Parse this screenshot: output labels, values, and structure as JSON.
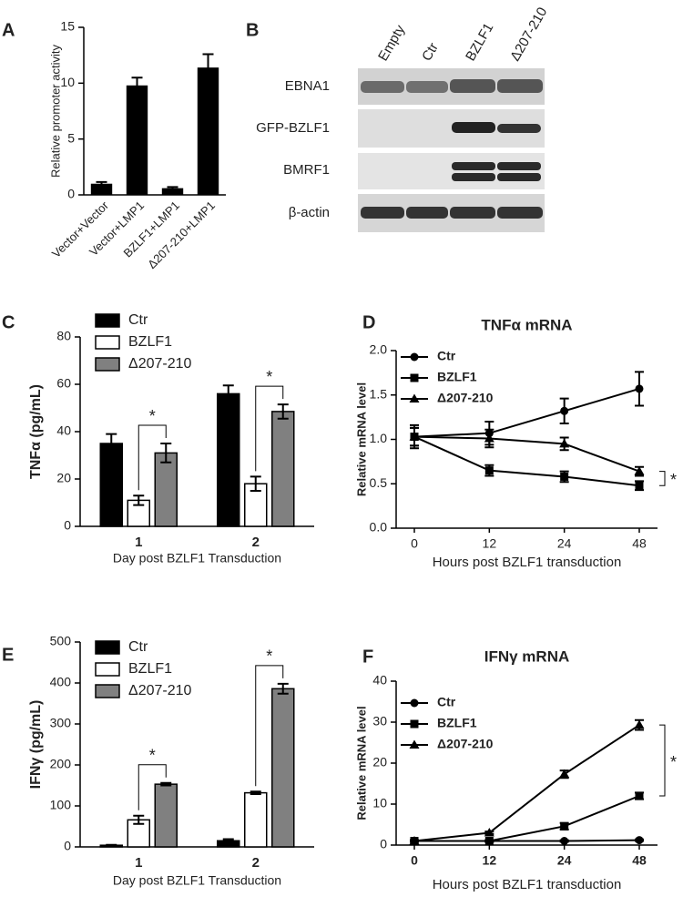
{
  "chart_data": [
    {
      "panel": "A",
      "type": "bar",
      "ylabel": "Relative promoter activity",
      "categories": [
        "Vector+Vector",
        "Vector+LMP1",
        "BZLF1+LMP1",
        "Δ207-210+LMP1"
      ],
      "values": [
        1.0,
        9.8,
        0.6,
        11.4
      ],
      "errors": [
        0.15,
        0.7,
        0.1,
        1.2
      ],
      "color": "#000000",
      "ylim": [
        0,
        15
      ],
      "yticks": [
        0,
        5,
        10,
        15
      ]
    },
    {
      "panel": "C",
      "type": "grouped_bar",
      "ylabel": "TNFα (pg/mL)",
      "xlabel": "Day post BZLF1 Transduction",
      "categories": [
        "1",
        "2"
      ],
      "series": [
        {
          "name": "Ctr",
          "color": "#000000",
          "values": [
            35,
            56
          ],
          "errors": [
            4,
            3.5
          ]
        },
        {
          "name": "BZLF1",
          "color": "#ffffff",
          "values": [
            11,
            18
          ],
          "errors": [
            2,
            3
          ]
        },
        {
          "name": "Δ207-210",
          "color": "#808080",
          "values": [
            31,
            48.5
          ],
          "errors": [
            4,
            3
          ]
        }
      ],
      "ylim": [
        0,
        80
      ],
      "yticks": [
        0,
        20,
        40,
        60,
        80
      ],
      "annotations": [
        "*",
        "*"
      ]
    },
    {
      "panel": "D",
      "type": "line",
      "title": "TNFα mRNA",
      "ylabel": "Relative mRNA level",
      "xlabel": "Hours post BZLF1 transduction",
      "categories": [
        "0",
        "12",
        "24",
        "48"
      ],
      "series": [
        {
          "name": "Ctr",
          "color": "#000000",
          "marker": "circle",
          "values": [
            1.03,
            1.07,
            1.32,
            1.57
          ],
          "errors": [
            0.13,
            0.13,
            0.14,
            0.19
          ]
        },
        {
          "name": "BZLF1",
          "color": "#000000",
          "marker": "square",
          "values": [
            1.03,
            0.65,
            0.58,
            0.48
          ],
          "errors": [
            0.1,
            0.06,
            0.06,
            0.05
          ]
        },
        {
          "name": "Δ207-210",
          "color": "#000000",
          "marker": "triangle",
          "values": [
            1.03,
            1.01,
            0.95,
            0.64
          ],
          "errors": [
            0.1,
            0.1,
            0.07,
            0.05
          ]
        }
      ],
      "ylim": [
        0,
        2
      ],
      "yticks": [
        {
          "value": 0,
          "label": "0.0"
        },
        0.5,
        {
          "value": 1,
          "label": "1.0"
        },
        1.5,
        {
          "value": 2,
          "label": "2.0"
        }
      ],
      "annotations": [
        "*"
      ]
    },
    {
      "panel": "E",
      "type": "grouped_bar",
      "ylabel": "IFNγ (pg/mL)",
      "xlabel": "Day post BZLF1 Transduction",
      "categories": [
        "1",
        "2"
      ],
      "series": [
        {
          "name": "Ctr",
          "color": "#000000",
          "values": [
            4,
            15
          ],
          "errors": [
            1,
            4
          ]
        },
        {
          "name": "BZLF1",
          "color": "#ffffff",
          "values": [
            66,
            132
          ],
          "errors": [
            10,
            3
          ]
        },
        {
          "name": "Δ207-210",
          "color": "#808080",
          "values": [
            153,
            386
          ],
          "errors": [
            3,
            12
          ]
        }
      ],
      "ylim": [
        0,
        500
      ],
      "yticks": [
        0,
        100,
        200,
        300,
        400,
        500
      ],
      "annotations": [
        "*",
        "*"
      ]
    },
    {
      "panel": "F",
      "type": "line",
      "title": "IFNγ mRNA",
      "ylabel": "Relative mRNA level",
      "xlabel": "Hours post BZLF1 transduction",
      "categories": [
        "0",
        "12",
        "24",
        "48"
      ],
      "series": [
        {
          "name": "Ctr",
          "color": "#000000",
          "marker": "circle",
          "values": [
            1,
            1,
            1,
            1.2
          ],
          "errors": [
            0.2,
            0.2,
            0.2,
            0.2
          ]
        },
        {
          "name": "BZLF1",
          "color": "#000000",
          "marker": "square",
          "values": [
            1,
            1,
            4.6,
            12
          ],
          "errors": [
            0.2,
            0.2,
            0.8,
            0.8
          ]
        },
        {
          "name": "Δ207-210",
          "color": "#000000",
          "marker": "triangle",
          "values": [
            1,
            3,
            17.3,
            29.3
          ],
          "errors": [
            0.2,
            0.3,
            0.9,
            1.2
          ]
        }
      ],
      "ylim": [
        0,
        40
      ],
      "yticks": [
        0,
        10,
        20,
        30,
        40
      ],
      "annotations": [
        "*"
      ]
    }
  ],
  "blot": {
    "panel": "B",
    "lanes": [
      "Empty",
      "Ctr",
      "BZLF1",
      "Δ207-210"
    ],
    "rows": [
      "EBNA1",
      "GFP-BZLF1",
      "BMRF1",
      "β-actin"
    ]
  }
}
